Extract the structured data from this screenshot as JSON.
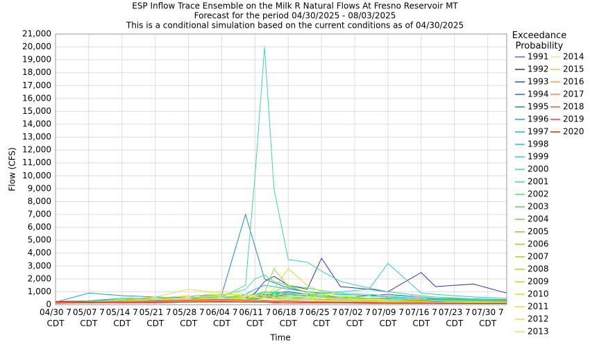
{
  "chart_data": {
    "type": "line",
    "title": "ESP Inflow Trace Ensemble on the Milk R Natural Flows At Fresno Reservoir MT",
    "subtitles": [
      "Forecast for the period 04/30/2025 - 08/03/2025",
      "This is a conditional simulation based on the current conditions as of 04/30/2025"
    ],
    "x_label": "Time",
    "y_label": "Flow (CFS)",
    "legend_title": "Exceedance Probability",
    "grid": true,
    "x": [
      "04/30",
      "05/07",
      "05/14",
      "05/21",
      "05/28",
      "06/04",
      "06/09",
      "06/11",
      "06/13",
      "06/15",
      "06/18",
      "06/22",
      "06/25",
      "06/29",
      "07/05",
      "07/09",
      "07/16",
      "07/19",
      "07/27",
      "08/03"
    ],
    "xlim": [
      "04/30",
      "08/03"
    ],
    "xticks": [
      {
        "value": "04/30",
        "label": "04/30 7 CDT"
      },
      {
        "value": "05/07",
        "label": "05/07 7 CDT"
      },
      {
        "value": "05/14",
        "label": "05/14 7 CDT"
      },
      {
        "value": "05/21",
        "label": "05/21 7 CDT"
      },
      {
        "value": "05/28",
        "label": "05/28 7 CDT"
      },
      {
        "value": "06/04",
        "label": "06/04 7 CDT"
      },
      {
        "value": "06/11",
        "label": "06/11 7 CDT"
      },
      {
        "value": "06/18",
        "label": "06/18 7 CDT"
      },
      {
        "value": "06/25",
        "label": "06/25 7 CDT"
      },
      {
        "value": "07/02",
        "label": "07/02 7 CDT"
      },
      {
        "value": "07/09",
        "label": "07/09 7 CDT"
      },
      {
        "value": "07/16",
        "label": "07/16 7 CDT"
      },
      {
        "value": "07/23",
        "label": "07/23 7 CDT"
      },
      {
        "value": "07/30",
        "label": "07/30 7 CDT"
      }
    ],
    "ylim": [
      0,
      21000
    ],
    "yticks": [
      0,
      {
        "value": 1000,
        "label": "1,000"
      },
      {
        "value": 2000,
        "label": "2,000"
      },
      {
        "value": 3000,
        "label": "3,000"
      },
      {
        "value": 4000,
        "label": "4,000"
      },
      {
        "value": 5000,
        "label": "5,000"
      },
      {
        "value": 6000,
        "label": "6,000"
      },
      {
        "value": 7000,
        "label": "7,000"
      },
      {
        "value": 8000,
        "label": "8,000"
      },
      {
        "value": 9000,
        "label": "9,000"
      },
      {
        "value": 10000,
        "label": "10,000"
      },
      {
        "value": 11000,
        "label": "11,000"
      },
      {
        "value": 12000,
        "label": "12,000"
      },
      {
        "value": 13000,
        "label": "13,000"
      },
      {
        "value": 14000,
        "label": "14,000"
      },
      {
        "value": 15000,
        "label": "15,000"
      },
      {
        "value": 16000,
        "label": "16,000"
      },
      {
        "value": 17000,
        "label": "17,000"
      },
      {
        "value": 18000,
        "label": "18,000"
      },
      {
        "value": 19000,
        "label": "19,000"
      },
      {
        "value": 20000,
        "label": "20,000"
      },
      {
        "value": 21000,
        "label": "21,000"
      }
    ],
    "series": [
      {
        "name": "1991",
        "color": "#6a5acd",
        "values": [
          150,
          200,
          300,
          350,
          400,
          300,
          350,
          400,
          500,
          600,
          800,
          700,
          600,
          500,
          700,
          800,
          600,
          500,
          450,
          400
        ]
      },
      {
        "name": "1992",
        "color": "#3030b0",
        "values": [
          200,
          250,
          300,
          300,
          350,
          400,
          500,
          900,
          1800,
          2200,
          1500,
          1200,
          3600,
          1400,
          1200,
          1000,
          2500,
          1400,
          1600,
          900
        ]
      },
      {
        "name": "1993",
        "color": "#2050d0",
        "values": [
          100,
          150,
          200,
          300,
          350,
          300,
          400,
          500,
          700,
          900,
          1000,
          800,
          700,
          600,
          500,
          500,
          400,
          400,
          350,
          300
        ]
      },
      {
        "name": "1994",
        "color": "#1e6fd0",
        "values": [
          250,
          300,
          400,
          350,
          300,
          300,
          400,
          600,
          800,
          700,
          600,
          500,
          400,
          400,
          350,
          300,
          300,
          250,
          250,
          200
        ]
      },
      {
        "name": "1995",
        "color": "#1a86d8",
        "values": [
          150,
          300,
          500,
          500,
          600,
          800,
          7000,
          4500,
          2000,
          1700,
          1300,
          1000,
          900,
          800,
          700,
          600,
          500,
          450,
          400,
          350
        ]
      },
      {
        "name": "1996",
        "color": "#1aa0d8",
        "values": [
          200,
          900,
          700,
          600,
          500,
          400,
          400,
          450,
          500,
          500,
          400,
          400,
          350,
          300,
          300,
          250,
          250,
          200,
          200,
          200
        ]
      },
      {
        "name": "1997",
        "color": "#20b8d0",
        "values": [
          100,
          200,
          300,
          400,
          500,
          500,
          800,
          1200,
          1500,
          1400,
          1200,
          1000,
          900,
          800,
          700,
          600,
          500,
          450,
          400,
          350
        ]
      },
      {
        "name": "1998",
        "color": "#20c8c0",
        "values": [
          150,
          250,
          400,
          500,
          500,
          600,
          700,
          800,
          1000,
          900,
          800,
          700,
          600,
          600,
          500,
          500,
          400,
          400,
          350,
          300
        ]
      },
      {
        "name": "1999",
        "color": "#30d0b8",
        "values": [
          100,
          200,
          300,
          300,
          400,
          400,
          500,
          600,
          700,
          800,
          700,
          700,
          900,
          1000,
          1200,
          3200,
          900,
          800,
          600,
          500
        ]
      },
      {
        "name": "2000",
        "color": "#40d8a0",
        "values": [
          200,
          300,
          500,
          400,
          500,
          600,
          1500,
          10000,
          20000,
          9000,
          3500,
          3300,
          2600,
          1800,
          1300,
          1000,
          700,
          600,
          450,
          350
        ]
      },
      {
        "name": "2001",
        "color": "#50d890",
        "values": [
          150,
          250,
          350,
          400,
          500,
          700,
          1200,
          2000,
          2300,
          1800,
          1500,
          1300,
          1100,
          900,
          800,
          700,
          600,
          500,
          400,
          350
        ]
      },
      {
        "name": "2002",
        "color": "#5cd87a",
        "values": [
          100,
          200,
          300,
          300,
          400,
          500,
          700,
          800,
          900,
          1000,
          900,
          800,
          700,
          600,
          500,
          450,
          400,
          350,
          300,
          250
        ]
      },
      {
        "name": "2003",
        "color": "#60d060",
        "values": [
          100,
          150,
          200,
          250,
          300,
          300,
          400,
          500,
          600,
          700,
          800,
          700,
          600,
          500,
          450,
          400,
          350,
          300,
          250,
          200
        ]
      },
      {
        "name": "2004",
        "color": "#70d050",
        "values": [
          80,
          150,
          250,
          300,
          350,
          400,
          500,
          600,
          700,
          800,
          900,
          600,
          500,
          400,
          350,
          300,
          250,
          200,
          200,
          150
        ]
      },
      {
        "name": "2005",
        "color": "#80d040",
        "values": [
          100,
          150,
          200,
          250,
          300,
          350,
          400,
          500,
          600,
          700,
          600,
          500,
          400,
          350,
          300,
          250,
          200,
          200,
          150,
          150
        ]
      },
      {
        "name": "2006",
        "color": "#90d038",
        "values": [
          100,
          200,
          300,
          300,
          400,
          400,
          500,
          500,
          600,
          600,
          500,
          400,
          350,
          300,
          250,
          200,
          200,
          150,
          150,
          100
        ]
      },
      {
        "name": "2007",
        "color": "#a0d030",
        "values": [
          150,
          200,
          300,
          400,
          350,
          300,
          350,
          400,
          500,
          1000,
          1500,
          900,
          700,
          600,
          500,
          400,
          350,
          300,
          250,
          200
        ]
      },
      {
        "name": "2008",
        "color": "#a8d828",
        "values": [
          100,
          200,
          250,
          300,
          400,
          500,
          600,
          700,
          900,
          2800,
          1400,
          1000,
          800,
          600,
          500,
          400,
          350,
          300,
          250,
          200
        ]
      },
      {
        "name": "2009",
        "color": "#b8dc30",
        "values": [
          80,
          150,
          200,
          300,
          400,
          600,
          700,
          800,
          700,
          600,
          500,
          500,
          400,
          350,
          300,
          250,
          200,
          200,
          150,
          150
        ]
      },
      {
        "name": "2010",
        "color": "#c8e030",
        "values": [
          100,
          150,
          300,
          400,
          600,
          500,
          500,
          600,
          700,
          1200,
          2800,
          1500,
          1000,
          700,
          500,
          400,
          350,
          300,
          250,
          200
        ]
      },
      {
        "name": "2011",
        "color": "#d8e040",
        "values": [
          100,
          200,
          300,
          500,
          700,
          800,
          700,
          600,
          500,
          500,
          600,
          600,
          500,
          400,
          350,
          300,
          250,
          200,
          200,
          150
        ]
      },
      {
        "name": "2012",
        "color": "#e0e050",
        "values": [
          100,
          200,
          400,
          600,
          1200,
          900,
          700,
          600,
          500,
          450,
          400,
          400,
          350,
          300,
          250,
          200,
          200,
          150,
          150,
          100
        ]
      },
      {
        "name": "2013",
        "color": "#e8e060",
        "values": [
          100,
          150,
          200,
          300,
          400,
          500,
          400,
          350,
          300,
          300,
          300,
          250,
          250,
          200,
          200,
          150,
          150,
          150,
          100,
          100
        ]
      },
      {
        "name": "2014",
        "color": "#f0e890",
        "values": [
          100,
          150,
          250,
          400,
          500,
          1100,
          800,
          600,
          500,
          400,
          350,
          300,
          300,
          250,
          200,
          200,
          150,
          150,
          100,
          100
        ]
      },
      {
        "name": "2015",
        "color": "#f0c060",
        "values": [
          100,
          150,
          200,
          250,
          300,
          250,
          250,
          300,
          300,
          300,
          250,
          250,
          200,
          200,
          200,
          150,
          150,
          150,
          100,
          100
        ]
      },
      {
        "name": "2016",
        "color": "#f0a050",
        "values": [
          100,
          150,
          200,
          200,
          250,
          250,
          200,
          250,
          250,
          300,
          300,
          250,
          200,
          200,
          150,
          150,
          150,
          100,
          100,
          100
        ]
      },
      {
        "name": "2017",
        "color": "#f08050",
        "values": [
          120,
          150,
          200,
          250,
          300,
          350,
          300,
          300,
          350,
          300,
          300,
          250,
          250,
          200,
          200,
          150,
          150,
          150,
          100,
          100
        ]
      },
      {
        "name": "2018",
        "color": "#e86040",
        "values": [
          150,
          200,
          250,
          300,
          350,
          400,
          350,
          300,
          300,
          250,
          250,
          200,
          200,
          200,
          150,
          150,
          150,
          100,
          100,
          100
        ]
      },
      {
        "name": "2019",
        "color": "#e04838",
        "values": [
          200,
          150,
          150,
          200,
          200,
          250,
          200,
          200,
          200,
          200,
          150,
          150,
          150,
          150,
          150,
          100,
          100,
          100,
          100,
          100
        ]
      },
      {
        "name": "2020",
        "color": "#d03020",
        "values": [
          250,
          200,
          150,
          150,
          200,
          200,
          200,
          200,
          200,
          150,
          150,
          150,
          150,
          150,
          100,
          100,
          100,
          100,
          80,
          80
        ]
      }
    ]
  }
}
